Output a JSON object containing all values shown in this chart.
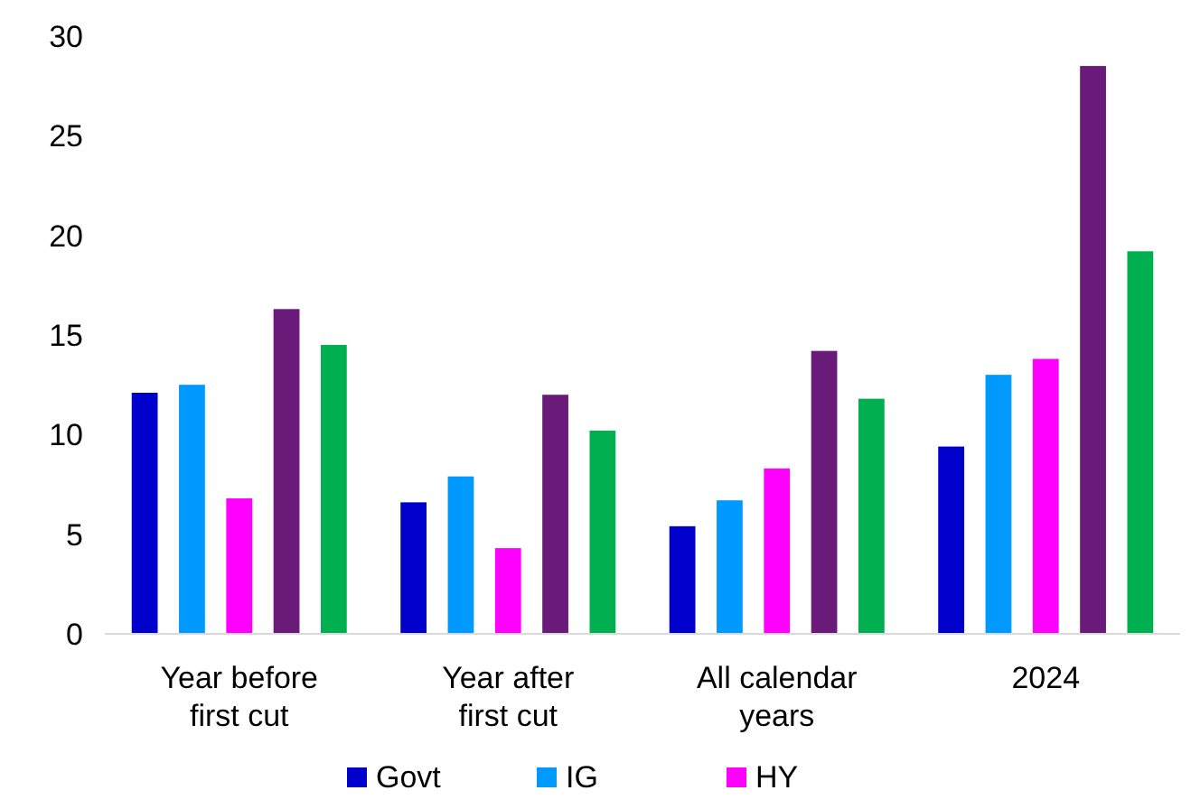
{
  "chart_data": {
    "type": "bar",
    "categories": [
      "Year before first cut",
      "Year after first cut",
      "All calendar years",
      "2024"
    ],
    "series": [
      {
        "name": "Govt",
        "color": "#0000cc",
        "values": [
          12.1,
          6.6,
          5.4,
          9.4
        ]
      },
      {
        "name": "IG",
        "color": "#0099ff",
        "values": [
          12.5,
          7.9,
          6.7,
          13.0
        ]
      },
      {
        "name": "HY",
        "color": "#ff00ff",
        "values": [
          6.8,
          4.3,
          8.3,
          13.8
        ]
      },
      {
        "color": "#6a1b7a",
        "values": [
          16.3,
          12.0,
          14.2,
          28.5
        ]
      },
      {
        "color": "#00b050",
        "values": [
          14.5,
          10.2,
          11.8,
          19.2
        ]
      }
    ],
    "ylim": [
      0,
      30
    ],
    "yticks": [
      0,
      5,
      10,
      15,
      20,
      25,
      30
    ],
    "grid": false,
    "legend": "bottom"
  }
}
